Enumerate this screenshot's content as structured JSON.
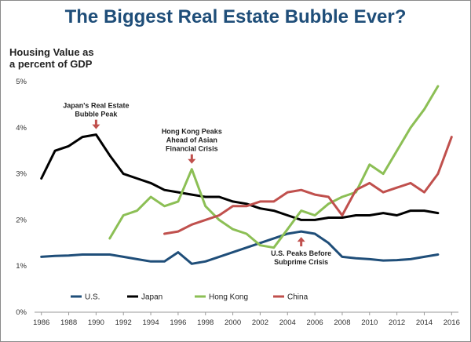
{
  "chart_data": {
    "type": "line",
    "title": "The Biggest Real Estate Bubble Ever?",
    "ylabel": "Housing Value as a percent of GDP",
    "ylabel_lines": [
      "Housing Value as",
      "a percent of GDP"
    ],
    "xlabel": "",
    "ylim": [
      0,
      5
    ],
    "xlim": [
      1985.5,
      2016.5
    ],
    "yticks": [
      0,
      1,
      2,
      3,
      4,
      5
    ],
    "ytick_labels": [
      "0%",
      "1%",
      "2%",
      "3%",
      "4%",
      "5%"
    ],
    "xticks": [
      1986,
      1988,
      1990,
      1992,
      1994,
      1996,
      1998,
      2000,
      2002,
      2004,
      2006,
      2008,
      2010,
      2012,
      2014,
      2016
    ],
    "grid": false,
    "legend_position": "bottom-left",
    "series": [
      {
        "name": "U.S.",
        "color": "#1f4e79",
        "x": [
          1986,
          1987,
          1988,
          1989,
          1990,
          1991,
          1992,
          1993,
          1994,
          1995,
          1996,
          1997,
          1998,
          1999,
          2000,
          2001,
          2002,
          2003,
          2004,
          2005,
          2006,
          2007,
          2008,
          2009,
          2010,
          2011,
          2012,
          2013,
          2014,
          2015
        ],
        "values": [
          1.2,
          1.22,
          1.23,
          1.25,
          1.25,
          1.25,
          1.2,
          1.15,
          1.1,
          1.1,
          1.3,
          1.05,
          1.1,
          1.2,
          1.3,
          1.4,
          1.5,
          1.6,
          1.7,
          1.75,
          1.7,
          1.5,
          1.2,
          1.17,
          1.15,
          1.12,
          1.13,
          1.15,
          1.2,
          1.25
        ]
      },
      {
        "name": "Japan",
        "color": "#000000",
        "x": [
          1986,
          1987,
          1988,
          1989,
          1990,
          1991,
          1992,
          1993,
          1994,
          1995,
          1996,
          1997,
          1998,
          1999,
          2000,
          2001,
          2002,
          2003,
          2004,
          2005,
          2006,
          2007,
          2008,
          2009,
          2010,
          2011,
          2012,
          2013,
          2014,
          2015
        ],
        "values": [
          2.9,
          3.5,
          3.6,
          3.8,
          3.85,
          3.4,
          3.0,
          2.9,
          2.8,
          2.65,
          2.6,
          2.55,
          2.5,
          2.5,
          2.4,
          2.35,
          2.25,
          2.2,
          2.1,
          2.0,
          2.0,
          2.05,
          2.05,
          2.1,
          2.1,
          2.15,
          2.1,
          2.2,
          2.2,
          2.15
        ]
      },
      {
        "name": "Hong Kong",
        "color": "#8cbf55",
        "x": [
          1991,
          1992,
          1993,
          1994,
          1995,
          1996,
          1997,
          1998,
          1999,
          2000,
          2001,
          2002,
          2003,
          2004,
          2005,
          2006,
          2007,
          2008,
          2009,
          2010,
          2011,
          2012,
          2013,
          2014,
          2015
        ],
        "values": [
          1.6,
          2.1,
          2.2,
          2.5,
          2.3,
          2.4,
          3.1,
          2.3,
          2.0,
          1.8,
          1.7,
          1.45,
          1.4,
          1.8,
          2.2,
          2.1,
          2.35,
          2.5,
          2.6,
          3.2,
          3.0,
          3.5,
          4.0,
          4.4,
          4.9
        ]
      },
      {
        "name": "China",
        "color": "#c0504d",
        "x": [
          1995,
          1996,
          1997,
          1998,
          1999,
          2000,
          2001,
          2002,
          2003,
          2004,
          2005,
          2006,
          2007,
          2008,
          2009,
          2010,
          2011,
          2012,
          2013,
          2014,
          2015,
          2016
        ],
        "values": [
          1.7,
          1.75,
          1.9,
          2.0,
          2.1,
          2.3,
          2.3,
          2.4,
          2.4,
          2.6,
          2.65,
          2.55,
          2.5,
          2.1,
          2.65,
          2.8,
          2.6,
          2.7,
          2.8,
          2.6,
          3.0,
          3.8
        ]
      }
    ],
    "annotations": [
      {
        "lines": [
          "Japan's Real Estate",
          "Bubble Peak"
        ],
        "x": 1990,
        "y": 3.85,
        "arrow": "down",
        "label_position": "above"
      },
      {
        "lines": [
          "Hong Kong Peaks",
          "Ahead of Asian",
          "Financial Crisis"
        ],
        "x": 1997,
        "y": 3.1,
        "arrow": "down",
        "label_position": "above"
      },
      {
        "lines": [
          "U.S. Peaks Before",
          "Subprime Crisis"
        ],
        "x": 2005,
        "y": 1.75,
        "arrow": "up",
        "label_position": "below"
      }
    ],
    "annotation_arrow_color": "#c0504d"
  }
}
